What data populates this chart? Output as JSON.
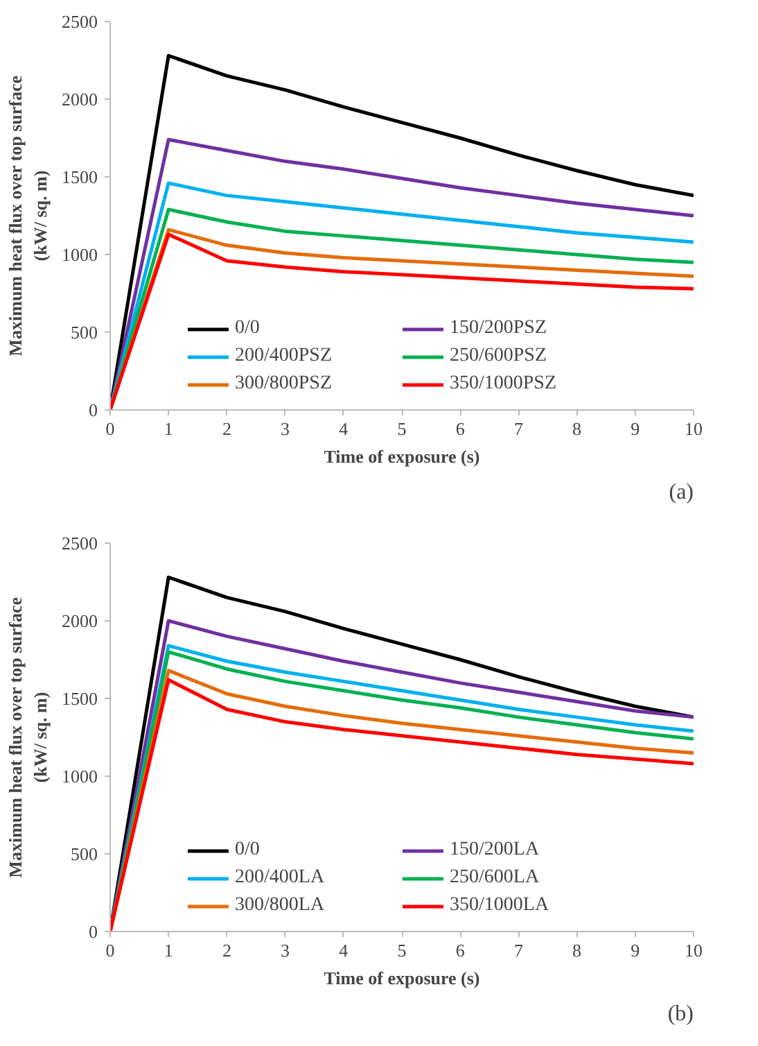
{
  "chart_data": [
    {
      "type": "line",
      "xlabel": "Time of exposure (s)",
      "ylabel": "Maximum heat flux over top surface\n(kW/ sq. m)",
      "annotations": [
        "(a)"
      ],
      "x": [
        0,
        1,
        2,
        3,
        4,
        5,
        6,
        7,
        8,
        9,
        10
      ],
      "xlim": [
        0,
        10
      ],
      "xticks": [
        0,
        1,
        2,
        3,
        4,
        5,
        6,
        7,
        8,
        9,
        10
      ],
      "ylim": [
        0,
        2500
      ],
      "yticks": [
        0,
        500,
        1000,
        1500,
        2000,
        2500
      ],
      "grid": false,
      "legend": "bottom",
      "marker": "none",
      "line_style": "solid",
      "series": [
        {
          "name": "0/0",
          "color": "#000000",
          "values": [
            0,
            2280,
            2150,
            2060,
            1950,
            1850,
            1750,
            1640,
            1540,
            1450,
            1380
          ]
        },
        {
          "name": "150/200PSZ",
          "color": "#7030a0",
          "values": [
            0,
            1740,
            1670,
            1600,
            1550,
            1490,
            1430,
            1380,
            1330,
            1290,
            1250
          ]
        },
        {
          "name": "200/400PSZ",
          "color": "#00b0f0",
          "values": [
            0,
            1460,
            1380,
            1340,
            1300,
            1260,
            1220,
            1180,
            1140,
            1110,
            1080
          ]
        },
        {
          "name": "250/600PSZ",
          "color": "#00b050",
          "values": [
            0,
            1290,
            1210,
            1150,
            1120,
            1090,
            1060,
            1030,
            1000,
            970,
            950
          ]
        },
        {
          "name": "300/800PSZ",
          "color": "#e46c0a",
          "values": [
            0,
            1160,
            1060,
            1010,
            980,
            960,
            940,
            920,
            900,
            880,
            860
          ]
        },
        {
          "name": "350/1000PSZ",
          "color": "#ff0000",
          "values": [
            0,
            1130,
            960,
            920,
            890,
            870,
            850,
            830,
            810,
            790,
            780
          ]
        }
      ]
    },
    {
      "type": "line",
      "xlabel": "Time of exposure (s)",
      "ylabel": "Maximum heat flux over top surface\n(kW/ sq. m)",
      "annotations": [
        "(b)"
      ],
      "x": [
        0,
        1,
        2,
        3,
        4,
        5,
        6,
        7,
        8,
        9,
        10
      ],
      "xlim": [
        0,
        10
      ],
      "xticks": [
        0,
        1,
        2,
        3,
        4,
        5,
        6,
        7,
        8,
        9,
        10
      ],
      "ylim": [
        0,
        2500
      ],
      "yticks": [
        0,
        500,
        1000,
        1500,
        2000,
        2500
      ],
      "grid": false,
      "legend": "bottom",
      "marker": "none",
      "line_style": "solid",
      "series": [
        {
          "name": "0/0",
          "color": "#000000",
          "values": [
            0,
            2280,
            2150,
            2060,
            1950,
            1850,
            1750,
            1640,
            1540,
            1450,
            1380
          ]
        },
        {
          "name": "150/200LA",
          "color": "#7030a0",
          "values": [
            0,
            2000,
            1900,
            1820,
            1740,
            1670,
            1600,
            1540,
            1480,
            1420,
            1380
          ]
        },
        {
          "name": "200/400LA",
          "color": "#00b0f0",
          "values": [
            0,
            1840,
            1740,
            1670,
            1610,
            1550,
            1490,
            1430,
            1380,
            1330,
            1290
          ]
        },
        {
          "name": "250/600LA",
          "color": "#00b050",
          "values": [
            0,
            1800,
            1690,
            1610,
            1550,
            1490,
            1440,
            1380,
            1330,
            1280,
            1240
          ]
        },
        {
          "name": "300/800LA",
          "color": "#e46c0a",
          "values": [
            0,
            1680,
            1530,
            1450,
            1390,
            1340,
            1300,
            1260,
            1220,
            1180,
            1150
          ]
        },
        {
          "name": "350/1000LA",
          "color": "#ff0000",
          "values": [
            0,
            1620,
            1430,
            1350,
            1300,
            1260,
            1220,
            1180,
            1140,
            1110,
            1080
          ]
        }
      ]
    }
  ]
}
